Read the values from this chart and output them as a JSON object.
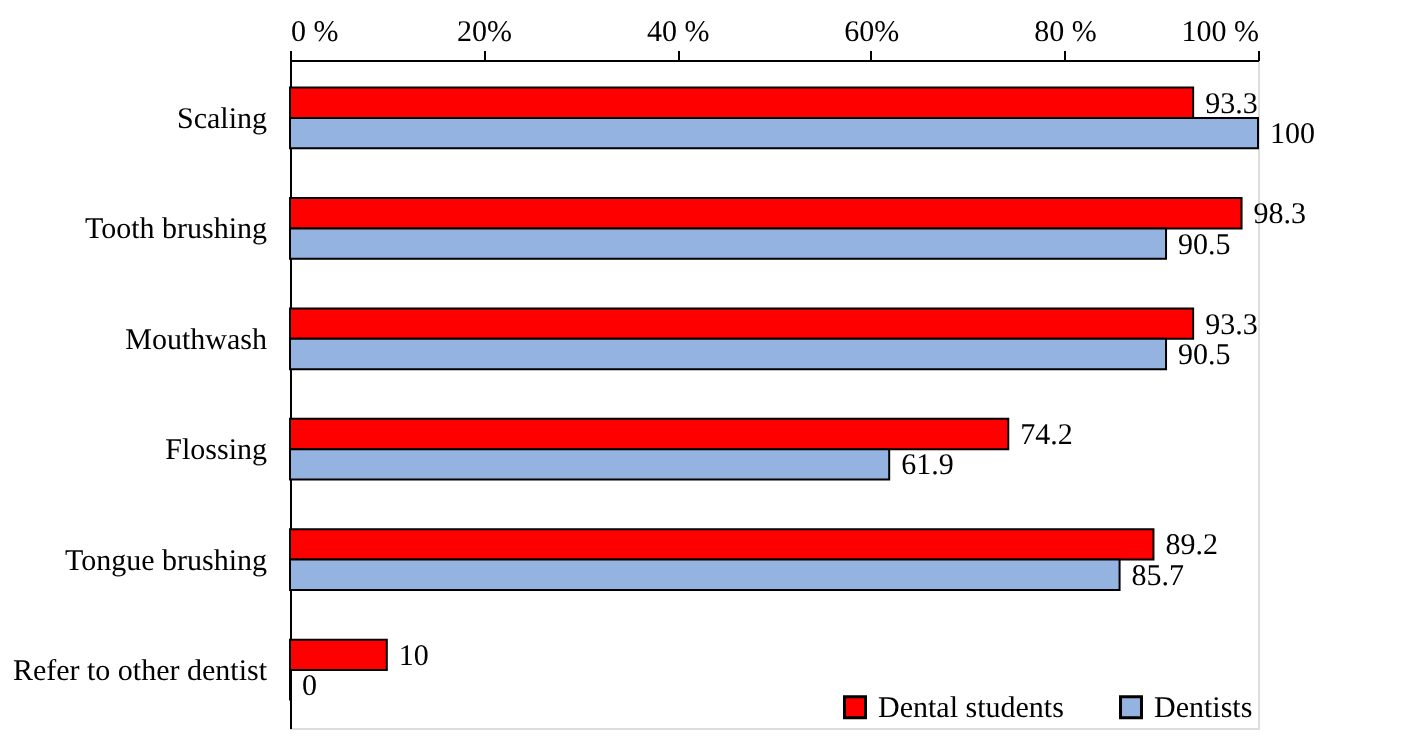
{
  "chart_data": {
    "type": "bar",
    "orientation": "horizontal",
    "categories": [
      "Scaling",
      "Tooth brushing",
      "Mouthwash",
      "Flossing",
      "Tongue brushing",
      "Refer to other dentist"
    ],
    "series": [
      {
        "name": "Dental students",
        "color": "#ff0000",
        "values": [
          93.3,
          98.3,
          93.3,
          74.2,
          89.2,
          10
        ]
      },
      {
        "name": "Dentists",
        "color": "#95b3e0",
        "values": [
          100,
          90.5,
          90.5,
          61.9,
          85.7,
          0
        ]
      }
    ],
    "xlim": [
      0,
      100
    ],
    "xticks": [
      {
        "value": 0,
        "label": "0 %"
      },
      {
        "value": 20,
        "label": "20%"
      },
      {
        "value": 40,
        "label": "40 %"
      },
      {
        "value": 60,
        "label": "60%"
      },
      {
        "value": 80,
        "label": "80 %"
      },
      {
        "value": 100,
        "label": "100 %"
      }
    ],
    "data_labels": true,
    "grid": false,
    "legend": "bottom right"
  }
}
